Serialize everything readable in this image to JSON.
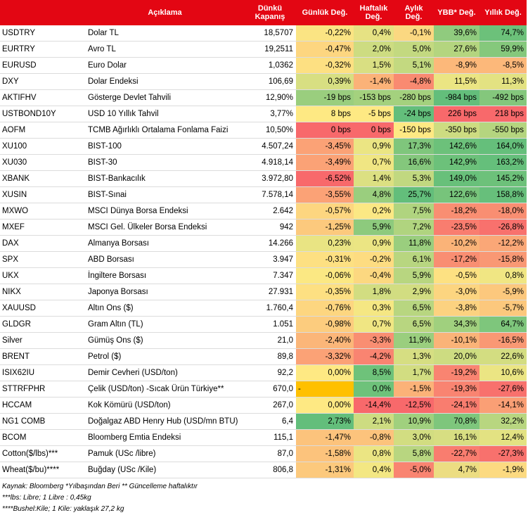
{
  "header": {
    "code": "",
    "description": "Açıklama",
    "close_line1": "Dünkü",
    "close_line2": "Kapanış",
    "daily": "Günlük Değ.",
    "weekly_line1": "Haftalık",
    "weekly_line2": "Değ.",
    "monthly_line1": "Aylık",
    "monthly_line2": "Değ.",
    "ytd": "YBB* Değ.",
    "yearly": "Yıllık Değ."
  },
  "rows": [
    {
      "code": "USDTRY",
      "desc": "Dolar TL",
      "close": "18,5707",
      "daily": "-0,22%",
      "weekly": "0,4%",
      "monthly": "-0,1%",
      "ytd": "39,6%",
      "yearly": "74,7%",
      "c": [
        "#fbe483",
        "#e6e283",
        "#fbd881",
        "#90cb7e",
        "#6cc17a"
      ]
    },
    {
      "code": "EURTRY",
      "desc": "Avro TL",
      "close": "19,2511",
      "daily": "-0,47%",
      "weekly": "2,0%",
      "monthly": "5,0%",
      "ytd": "27,6%",
      "yearly": "59,9%",
      "c": [
        "#fdd680",
        "#cddc81",
        "#c3d980",
        "#b4d57f",
        "#85c87c"
      ]
    },
    {
      "code": "EURUSD",
      "desc": "Euro Dolar",
      "close": "1,0362",
      "daily": "-0,32%",
      "weekly": "1,5%",
      "monthly": "5,1%",
      "ytd": "-8,9%",
      "yearly": "-8,5%",
      "c": [
        "#fde082",
        "#d9df82",
        "#c3d980",
        "#fcb87a",
        "#fcb87a"
      ]
    },
    {
      "code": "DXY",
      "desc": "Dolar Endeksi",
      "close": "106,69",
      "daily": "0,39%",
      "weekly": "-1,4%",
      "monthly": "-4,8%",
      "ytd": "11,5%",
      "yearly": "11,3%",
      "c": [
        "#d8df82",
        "#fbb278",
        "#f98a71",
        "#ebe583",
        "#e3e282"
      ]
    },
    {
      "code": "AKTIFHV",
      "desc": "Gösterge Devlet Tahvili",
      "close": "12,90%",
      "daily": "-19 bps",
      "weekly": "-153 bps",
      "monthly": "-280 bps",
      "ytd": "-984 bps",
      "yearly": "-492 bps",
      "c": [
        "#9ace7e",
        "#a4d17e",
        "#a4d17e",
        "#63be7b",
        "#84c77c"
      ]
    },
    {
      "code": "USTBOND10Y",
      "desc": "USD 10 Yıllık Tahvil",
      "close": "3,77%",
      "daily": "8 bps",
      "weekly": "-5 bps",
      "monthly": "-24 bps",
      "ytd": "226 bps",
      "yearly": "218 bps",
      "c": [
        "#fee983",
        "#fee983",
        "#63be7b",
        "#f8696b",
        "#f8696b"
      ]
    },
    {
      "code": "AOFM",
      "desc": "TCMB Ağırlıklı Ortalama Fonlama Faizi",
      "close": "10,50%",
      "daily": "0 bps",
      "weekly": "0 bps",
      "monthly": "-150 bps",
      "ytd": "-350 bps",
      "yearly": "-550 bps",
      "c": [
        "#f8696b",
        "#f8696b",
        "#fee983",
        "#cddc81",
        "#b5d57f"
      ]
    },
    {
      "code": "XU100",
      "desc": "BIST-100",
      "close": "4.507,24",
      "daily": "-3,45%",
      "weekly": "0,9%",
      "monthly": "17,3%",
      "ytd": "142,6%",
      "yearly": "164,0%",
      "c": [
        "#fba276",
        "#ebe583",
        "#7fc67c",
        "#6cc17a",
        "#65bf7b"
      ]
    },
    {
      "code": "XU030",
      "desc": "BIST-30",
      "close": "4.918,14",
      "daily": "-3,49%",
      "weekly": "0,7%",
      "monthly": "16,6%",
      "ytd": "142,9%",
      "yearly": "163,2%",
      "c": [
        "#fba276",
        "#f0e683",
        "#84c77c",
        "#6cc17a",
        "#65bf7b"
      ]
    },
    {
      "code": "XBANK",
      "desc": "BIST-Bankacılık",
      "close": "3.972,80",
      "daily": "-6,52%",
      "weekly": "1,4%",
      "monthly": "5,3%",
      "ytd": "149,0%",
      "yearly": "145,2%",
      "c": [
        "#f8696b",
        "#dce082",
        "#c1d880",
        "#68c07a",
        "#6dc17a"
      ]
    },
    {
      "code": "XUSIN",
      "desc": "BIST-Sınai",
      "close": "7.578,14",
      "daily": "-3,55%",
      "weekly": "4,8%",
      "monthly": "25,7%",
      "ytd": "122,6%",
      "yearly": "158,8%",
      "c": [
        "#fba276",
        "#9ace7e",
        "#63be7b",
        "#77c47b",
        "#67bf7b"
      ]
    },
    {
      "code": "MXWO",
      "desc": "MSCI Dünya Borsa Endeksi",
      "close": "2.642",
      "daily": "-0,57%",
      "weekly": "0,2%",
      "monthly": "7,5%",
      "ytd": "-18,2%",
      "yearly": "-18,0%",
      "c": [
        "#fdd680",
        "#fbe884",
        "#b0d47f",
        "#f98e72",
        "#f98e72"
      ]
    },
    {
      "code": "MXEF",
      "desc": "MSCI Gel. Ülkeler Borsa Endeksi",
      "close": "942",
      "daily": "-1,25%",
      "weekly": "5,9%",
      "monthly": "7,2%",
      "ytd": "-23,5%",
      "yearly": "-26,8%",
      "c": [
        "#fcc97d",
        "#8dca7d",
        "#b0d47f",
        "#f97d6f",
        "#f8716d"
      ]
    },
    {
      "code": "DAX",
      "desc": "Almanya Borsası",
      "close": "14.266",
      "daily": "0,23%",
      "weekly": "0,9%",
      "monthly": "11,8%",
      "ytd": "-10,2%",
      "yearly": "-12,2%",
      "c": [
        "#e9e483",
        "#ebe583",
        "#9ace7e",
        "#fab378",
        "#faa777"
      ]
    },
    {
      "code": "SPX",
      "desc": "ABD Borsası",
      "close": "3.947",
      "daily": "-0,31%",
      "weekly": "-0,2%",
      "monthly": "6,1%",
      "ytd": "-17,2%",
      "yearly": "-15,8%",
      "c": [
        "#fde082",
        "#fddc81",
        "#b8d680",
        "#f98e72",
        "#f99874"
      ]
    },
    {
      "code": "UKX",
      "desc": "İngiltere Borsası",
      "close": "7.347",
      "daily": "-0,06%",
      "weekly": "-0,4%",
      "monthly": "5,9%",
      "ytd": "-0,5%",
      "yearly": "0,8%",
      "c": [
        "#fbe883",
        "#fcd880",
        "#b8d680",
        "#fde182",
        "#f0e683"
      ]
    },
    {
      "code": "NIKX",
      "desc": "Japonya Borsası",
      "close": "27.931",
      "daily": "-0,35%",
      "weekly": "1,8%",
      "monthly": "2,9%",
      "ytd": "-3,0%",
      "yearly": "-5,9%",
      "c": [
        "#fde082",
        "#d2dd81",
        "#d2dd81",
        "#fcd580",
        "#fcc87d"
      ]
    },
    {
      "code": "XAUUSD",
      "desc": "Altın Ons ($)",
      "close": "1.760,4",
      "daily": "-0,76%",
      "weekly": "0,3%",
      "monthly": "6,5%",
      "ytd": "-3,8%",
      "yearly": "-5,7%",
      "c": [
        "#fdd680",
        "#f5e783",
        "#b8d680",
        "#fcd280",
        "#fcc87d"
      ]
    },
    {
      "code": "GLDGR",
      "desc": "Gram Altın (TL)",
      "close": "1.051",
      "daily": "-0,98%",
      "weekly": "0,7%",
      "monthly": "6,5%",
      "ytd": "34,3%",
      "yearly": "64,7%",
      "c": [
        "#fccc7e",
        "#f0e683",
        "#b8d680",
        "#a0d07e",
        "#7ec67c"
      ]
    },
    {
      "code": "Silver",
      "desc": "Gümüş Ons ($)",
      "close": "21,0",
      "daily": "-2,40%",
      "weekly": "-3,3%",
      "monthly": "11,9%",
      "ytd": "-10,1%",
      "yearly": "-16,5%",
      "c": [
        "#fbb679",
        "#f98e72",
        "#9ace7e",
        "#fab378",
        "#f99874"
      ]
    },
    {
      "code": "BRENT",
      "desc": "Petrol ($)",
      "close": "89,8",
      "daily": "-3,32%",
      "weekly": "-4,2%",
      "monthly": "1,3%",
      "ytd": "20,0%",
      "yearly": "22,6%",
      "c": [
        "#fba276",
        "#f98471",
        "#d6de82",
        "#cddc81",
        "#d3dd81"
      ]
    },
    {
      "code": "ISIX62IU",
      "desc": "Demir Cevheri (USD/ton)",
      "close": "92,2",
      "daily": "0,00%",
      "weekly": "8,5%",
      "monthly": "1,7%",
      "ytd": "-19,2%",
      "yearly": "10,6%",
      "c": [
        "#fee983",
        "#6ec27a",
        "#d2dd81",
        "#f98471",
        "#ebe583"
      ]
    },
    {
      "code": "STTRFPHR",
      "desc": "Çelik (USD/ton) -Sıcak Ürün Türkiye**",
      "close": "670,0",
      "daily": "-",
      "weekly": "0,0%",
      "monthly": "-1,5%",
      "ytd": "-19,3%",
      "yearly": "-27,6%",
      "c": [
        "#ffc000",
        "#6ec27a",
        "#fbb278",
        "#f98471",
        "#f8716d"
      ]
    },
    {
      "code": "HCCAM",
      "desc": "Kok Kömürü (USD/ton)",
      "close": "267,0",
      "daily": "0,00%",
      "weekly": "-14,4%",
      "monthly": "-12,5%",
      "ytd": "-24,1%",
      "yearly": "-14,1%",
      "c": [
        "#fee983",
        "#f8696b",
        "#f8696b",
        "#f97d6f",
        "#fa9f75"
      ]
    },
    {
      "code": "NG1 COMB",
      "desc": "Doğalgaz ABD Henry Hub (USD/mn BTU)",
      "close": "6,4",
      "daily": "2,73%",
      "weekly": "2,1%",
      "monthly": "10,9%",
      "ytd": "70,8%",
      "yearly": "32,2%",
      "c": [
        "#63be7b",
        "#cddc81",
        "#a0d07e",
        "#7ec67c",
        "#b8d680"
      ]
    },
    {
      "code": "BCOM",
      "desc": "Bloomberg Emtia Endeksi",
      "close": "115,1",
      "daily": "-1,47%",
      "weekly": "-0,8%",
      "monthly": "3,0%",
      "ytd": "16,1%",
      "yearly": "12,4%",
      "c": [
        "#fcc37c",
        "#fcc37c",
        "#d2dd81",
        "#d7de82",
        "#e3e282"
      ]
    },
    {
      "code": "Cotton($/lbs)***",
      "desc": "Pamuk (USc /libre)",
      "close": "87,0",
      "daily": "-1,58%",
      "weekly": "0,8%",
      "monthly": "5,8%",
      "ytd": "-22,7%",
      "yearly": "-27,3%",
      "c": [
        "#fcc37c",
        "#ebe583",
        "#b8d680",
        "#f97d6f",
        "#f8716d"
      ]
    },
    {
      "code": "Wheat($/bu)****",
      "desc": "Buğday (USc /Kile)",
      "close": "806,8",
      "daily": "-1,31%",
      "weekly": "0,4%",
      "monthly": "-5,0%",
      "ytd": "4,7%",
      "yearly": "-1,9%",
      "c": [
        "#fcc97d",
        "#f3e783",
        "#f98471",
        "#ecdd82",
        "#fcda81"
      ]
    }
  ],
  "footer": {
    "line1": "Kaynak: Bloomberg *Yılbaşından Beri  ** Güncelleme haftalıktır",
    "line2": "***lbs: Libre; 1 Libre : 0,45kg",
    "line3": "****Bushel:Kile; 1 Kile: yaklaşık 27,2 kg"
  },
  "colors": {
    "header_bg": "#e30613",
    "header_text": "#ffffff"
  }
}
